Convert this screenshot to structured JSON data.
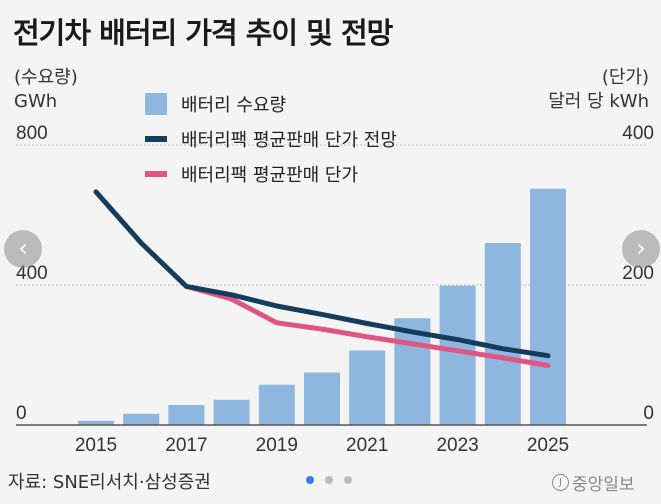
{
  "title": "전기차 배터리 가격 추이 및 전망",
  "left_axis": {
    "label_line1": "(수요량)",
    "label_line2": "GWh"
  },
  "right_axis": {
    "label_line1": "(단가)",
    "label_line2": "달러 당 kWh"
  },
  "source": "자료: SNE리서치·삼성증권",
  "logo_text": "중앙일보",
  "nav": {
    "prev": "‹",
    "next": "›"
  },
  "pagination": {
    "count": 3,
    "active": 0
  },
  "colors": {
    "bar": "#8fb6de",
    "forecast": "#163c5c",
    "actual": "#e05682",
    "grid": "#bbbbbb"
  },
  "chart_data": {
    "type": "bar+line",
    "title": "전기차 배터리 가격 추이 및 전망",
    "x": [
      2015,
      2016,
      2017,
      2018,
      2019,
      2020,
      2021,
      2022,
      2023,
      2024,
      2025
    ],
    "x_tick_labels": [
      "2015",
      "2017",
      "2019",
      "2021",
      "2023",
      "2025"
    ],
    "y_left": {
      "label": "(수요량) GWh",
      "range": [
        0,
        800
      ],
      "ticks": [
        "0",
        "400",
        "800"
      ]
    },
    "y_right": {
      "label": "(단가) 달러 당 kWh",
      "range": [
        0,
        400
      ],
      "ticks": [
        "0",
        "200",
        "400"
      ]
    },
    "legend": [
      "배터리 수요량",
      "배터리팩 평균판매 단가 전망",
      "배터리팩 평균판매 단가"
    ],
    "series": [
      {
        "name": "배터리 수요량",
        "type": "bar",
        "axis": "left",
        "values": [
          12,
          32,
          57,
          72,
          115,
          150,
          213,
          305,
          398,
          520,
          675
        ]
      },
      {
        "name": "배터리팩 평균판매 단가 전망",
        "type": "line",
        "axis": "right",
        "x": [
          2015,
          2016,
          2017,
          2018,
          2019,
          2020,
          2021,
          2022,
          2023,
          2024,
          2025
        ],
        "values": [
          333,
          260,
          198,
          186,
          170,
          158,
          145,
          133,
          122,
          109,
          99
        ]
      },
      {
        "name": "배터리팩 평균판매 단가",
        "type": "line",
        "axis": "right",
        "x": [
          2017,
          2018,
          2019,
          2020,
          2021,
          2022,
          2023,
          2024,
          2025
        ],
        "values": [
          198,
          180,
          146,
          137,
          126,
          116,
          106,
          96,
          85
        ]
      }
    ]
  }
}
